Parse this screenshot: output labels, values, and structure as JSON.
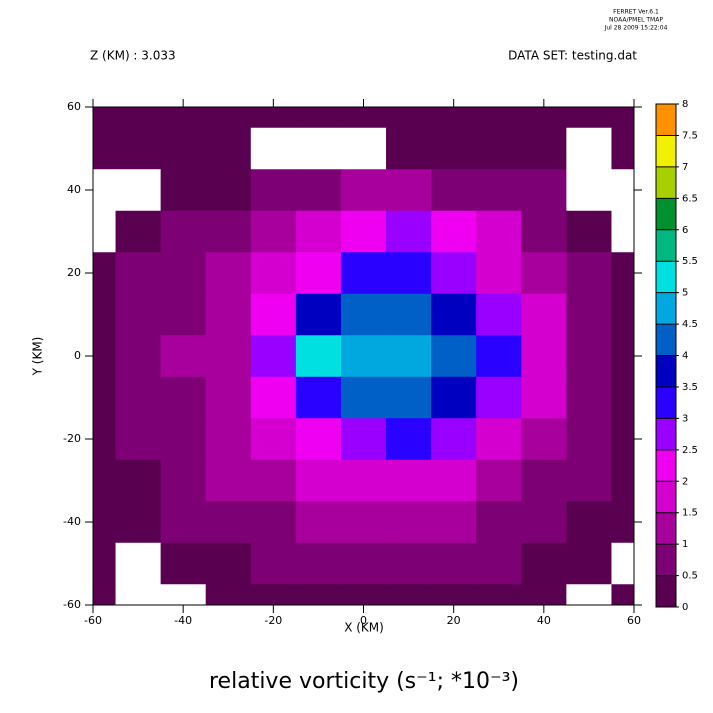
{
  "chart_data": {
    "type": "contour",
    "header": [
      "FERRET  Ver.6.1",
      "NOAA/PMEL TMAP",
      "Jul 28 2009 15:22:04"
    ],
    "subtitle_left": "Z (KM) : 3.033",
    "subtitle_right": "DATA SET: testing.dat",
    "title": "relative vorticity (s⁻¹; *10⁻³)",
    "xlabel": "X (KM)",
    "ylabel": "Y (KM)",
    "x": [
      -60,
      -50,
      -40,
      -30,
      -20,
      -10,
      0,
      10,
      20,
      30,
      40,
      50,
      60
    ],
    "y": [
      60,
      50,
      40,
      30,
      20,
      10,
      0,
      -10,
      -20,
      -30,
      -40,
      -50,
      -60
    ],
    "z": [
      [
        0.2,
        0.2,
        0.2,
        0.2,
        0.2,
        0.2,
        0.2,
        0.2,
        0.2,
        0.2,
        0.2,
        0.2,
        0.2
      ],
      [
        0.2,
        0.2,
        0.2,
        0.2,
        -0.2,
        -0.2,
        -0.2,
        0.2,
        0.2,
        0.2,
        0.2,
        -0.2,
        0.2
      ],
      [
        -0.2,
        -0.2,
        0.3,
        0.4,
        0.7,
        0.9,
        1.0,
        1.0,
        0.9,
        0.7,
        0.5,
        -0.2,
        -0.2
      ],
      [
        -0.2,
        0.3,
        0.6,
        0.9,
        1.2,
        1.5,
        2.0,
        2.6,
        2.0,
        1.5,
        0.8,
        0.4,
        -0.2
      ],
      [
        0.3,
        0.5,
        0.8,
        1.2,
        1.6,
        2.2,
        3.0,
        3.0,
        2.8,
        1.8,
        1.2,
        0.6,
        0.3
      ],
      [
        0.4,
        0.6,
        0.9,
        1.3,
        2.0,
        3.8,
        4.4,
        4.0,
        3.6,
        2.6,
        1.5,
        0.8,
        0.4
      ],
      [
        0.4,
        0.6,
        1.0,
        1.4,
        2.6,
        5.2,
        4.6,
        4.5,
        4.0,
        3.3,
        1.8,
        0.9,
        0.4
      ],
      [
        0.4,
        0.6,
        0.9,
        1.3,
        2.2,
        3.4,
        4.2,
        4.3,
        3.8,
        2.6,
        1.5,
        0.8,
        0.4
      ],
      [
        0.3,
        0.5,
        0.8,
        1.2,
        1.6,
        2.4,
        2.9,
        3.0,
        2.6,
        1.8,
        1.2,
        0.6,
        0.3
      ],
      [
        0.3,
        0.4,
        0.7,
        1.0,
        1.3,
        1.6,
        1.8,
        1.8,
        1.6,
        1.3,
        0.9,
        0.5,
        0.2
      ],
      [
        0.2,
        0.3,
        0.5,
        0.7,
        0.9,
        1.1,
        1.2,
        1.2,
        1.1,
        0.9,
        0.7,
        0.4,
        0.2
      ],
      [
        0.2,
        -0.2,
        0.3,
        0.4,
        0.6,
        0.7,
        0.8,
        0.8,
        0.7,
        0.6,
        0.4,
        0.2,
        -0.2
      ],
      [
        0.2,
        -0.2,
        -0.2,
        0.2,
        0.2,
        0.2,
        0.2,
        0.2,
        0.2,
        0.2,
        0.2,
        -0.2,
        0.2
      ]
    ],
    "xlim": [
      -60,
      60
    ],
    "ylim": [
      -60,
      60
    ],
    "xticks": [
      -60,
      -40,
      -20,
      0,
      20,
      40,
      60
    ],
    "yticks": [
      -60,
      -40,
      -20,
      0,
      20,
      40,
      60
    ],
    "levels": [
      0,
      0.5,
      1,
      1.5,
      2,
      2.5,
      3,
      3.5,
      4,
      4.5,
      5,
      5.5,
      6,
      6.5,
      7,
      7.5,
      8
    ],
    "colors": [
      "#5a0050",
      "#7e0075",
      "#a8009d",
      "#d400d0",
      "#f000f0",
      "#9a00ff",
      "#2a00ff",
      "#0000c0",
      "#0060c8",
      "#00a8e0",
      "#00e0e0",
      "#00b880",
      "#009030",
      "#a8d000",
      "#f0f000",
      "#ff9000",
      "#ff2000",
      "#8c0000"
    ]
  }
}
